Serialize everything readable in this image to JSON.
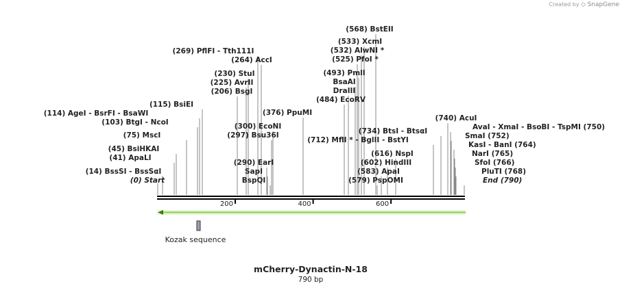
{
  "watermark": {
    "created_by": "Created by",
    "brand": "SnapGene"
  },
  "sequence": {
    "name": "mCherry-Dynactin-N-18",
    "length_label": "790 bp",
    "length": 790
  },
  "axis": {
    "ticks": [
      200,
      400,
      600
    ]
  },
  "feature": {
    "name": "Kozak sequence"
  },
  "orf": {
    "direction": "reverse",
    "color": "#b5e38a"
  },
  "sites": [
    {
      "pos": "(0)",
      "parts": [
        "Start"
      ],
      "italic": true
    },
    {
      "pos": "(14)",
      "parts": [
        "BssSI",
        "BssSαI"
      ]
    },
    {
      "pos": "(41)",
      "parts": [
        "ApaLI"
      ]
    },
    {
      "pos": "(45)",
      "parts": [
        "BsiHKAI"
      ]
    },
    {
      "pos": "(75)",
      "parts": [
        "MscI"
      ]
    },
    {
      "pos": "(103)",
      "parts": [
        "BtgI",
        "NcoI"
      ]
    },
    {
      "pos": "(114)",
      "parts": [
        "AgeI",
        "BsrFI",
        "BsaWI"
      ]
    },
    {
      "pos": "(115)",
      "parts": [
        "BsiEI"
      ]
    },
    {
      "pos": "(206)",
      "parts": [
        "BsgI"
      ]
    },
    {
      "pos": "(225)",
      "parts": [
        "AvrII"
      ]
    },
    {
      "pos": "(230)",
      "parts": [
        "StuI"
      ]
    },
    {
      "pos": "(264)",
      "parts": [
        "AccI"
      ]
    },
    {
      "pos": "(269)",
      "parts": [
        "PflFI",
        "Tth111I"
      ]
    },
    {
      "pos": "",
      "parts": [
        "BspQI"
      ]
    },
    {
      "pos": "",
      "parts": [
        "SapI"
      ]
    },
    {
      "pos": "(290)",
      "parts": [
        "EarI"
      ]
    },
    {
      "pos": "(297)",
      "parts": [
        "Bsu36I"
      ]
    },
    {
      "pos": "(300)",
      "parts": [
        "EcoNI"
      ]
    },
    {
      "pos": "(376)",
      "parts": [
        "PpuMI"
      ]
    },
    {
      "pos": "(484)",
      "parts": [
        "EcoRV"
      ]
    },
    {
      "pos": "",
      "parts": [
        "DraIII"
      ]
    },
    {
      "pos": "",
      "parts": [
        "BsaAI"
      ]
    },
    {
      "pos": "(493)",
      "parts": [
        "PmlI"
      ]
    },
    {
      "pos": "(525)",
      "parts": [
        "PfoI *"
      ]
    },
    {
      "pos": "(532)",
      "parts": [
        "AlwNI *"
      ]
    },
    {
      "pos": "(533)",
      "parts": [
        "XcmI"
      ]
    },
    {
      "pos": "(568)",
      "parts": [
        "BstEII"
      ]
    },
    {
      "pos": "(579)",
      "parts": [
        "PspOMI"
      ]
    },
    {
      "pos": "(583)",
      "parts": [
        "ApaI"
      ]
    },
    {
      "pos": "(602)",
      "parts": [
        "HindIII"
      ]
    },
    {
      "pos": "(616)",
      "parts": [
        "NspI"
      ]
    },
    {
      "pos": "(712)",
      "parts": [
        "MflI *",
        "BglII",
        "BstYI"
      ]
    },
    {
      "pos": "(734)",
      "parts": [
        "BtsI",
        "BtsαI"
      ]
    },
    {
      "pos": "(740)",
      "parts": [
        "AcuI"
      ]
    },
    {
      "pos": "(750)",
      "parts": [
        "AvaI",
        "XmaI",
        "BsoBI",
        "TspMI"
      ],
      "pos_right": true
    },
    {
      "pos": "(752)",
      "parts": [
        "SmaI"
      ],
      "pos_right": true
    },
    {
      "pos": "(764)",
      "parts": [
        "KasI",
        "BanI"
      ],
      "pos_right": true
    },
    {
      "pos": "(765)",
      "parts": [
        "NarI"
      ],
      "pos_right": true
    },
    {
      "pos": "(766)",
      "parts": [
        "SfoI"
      ],
      "pos_right": true
    },
    {
      "pos": "(768)",
      "parts": [
        "PluTI"
      ],
      "pos_right": true
    },
    {
      "pos": "(790)",
      "parts": [
        "End"
      ],
      "italic": true,
      "pos_right": true
    }
  ]
}
